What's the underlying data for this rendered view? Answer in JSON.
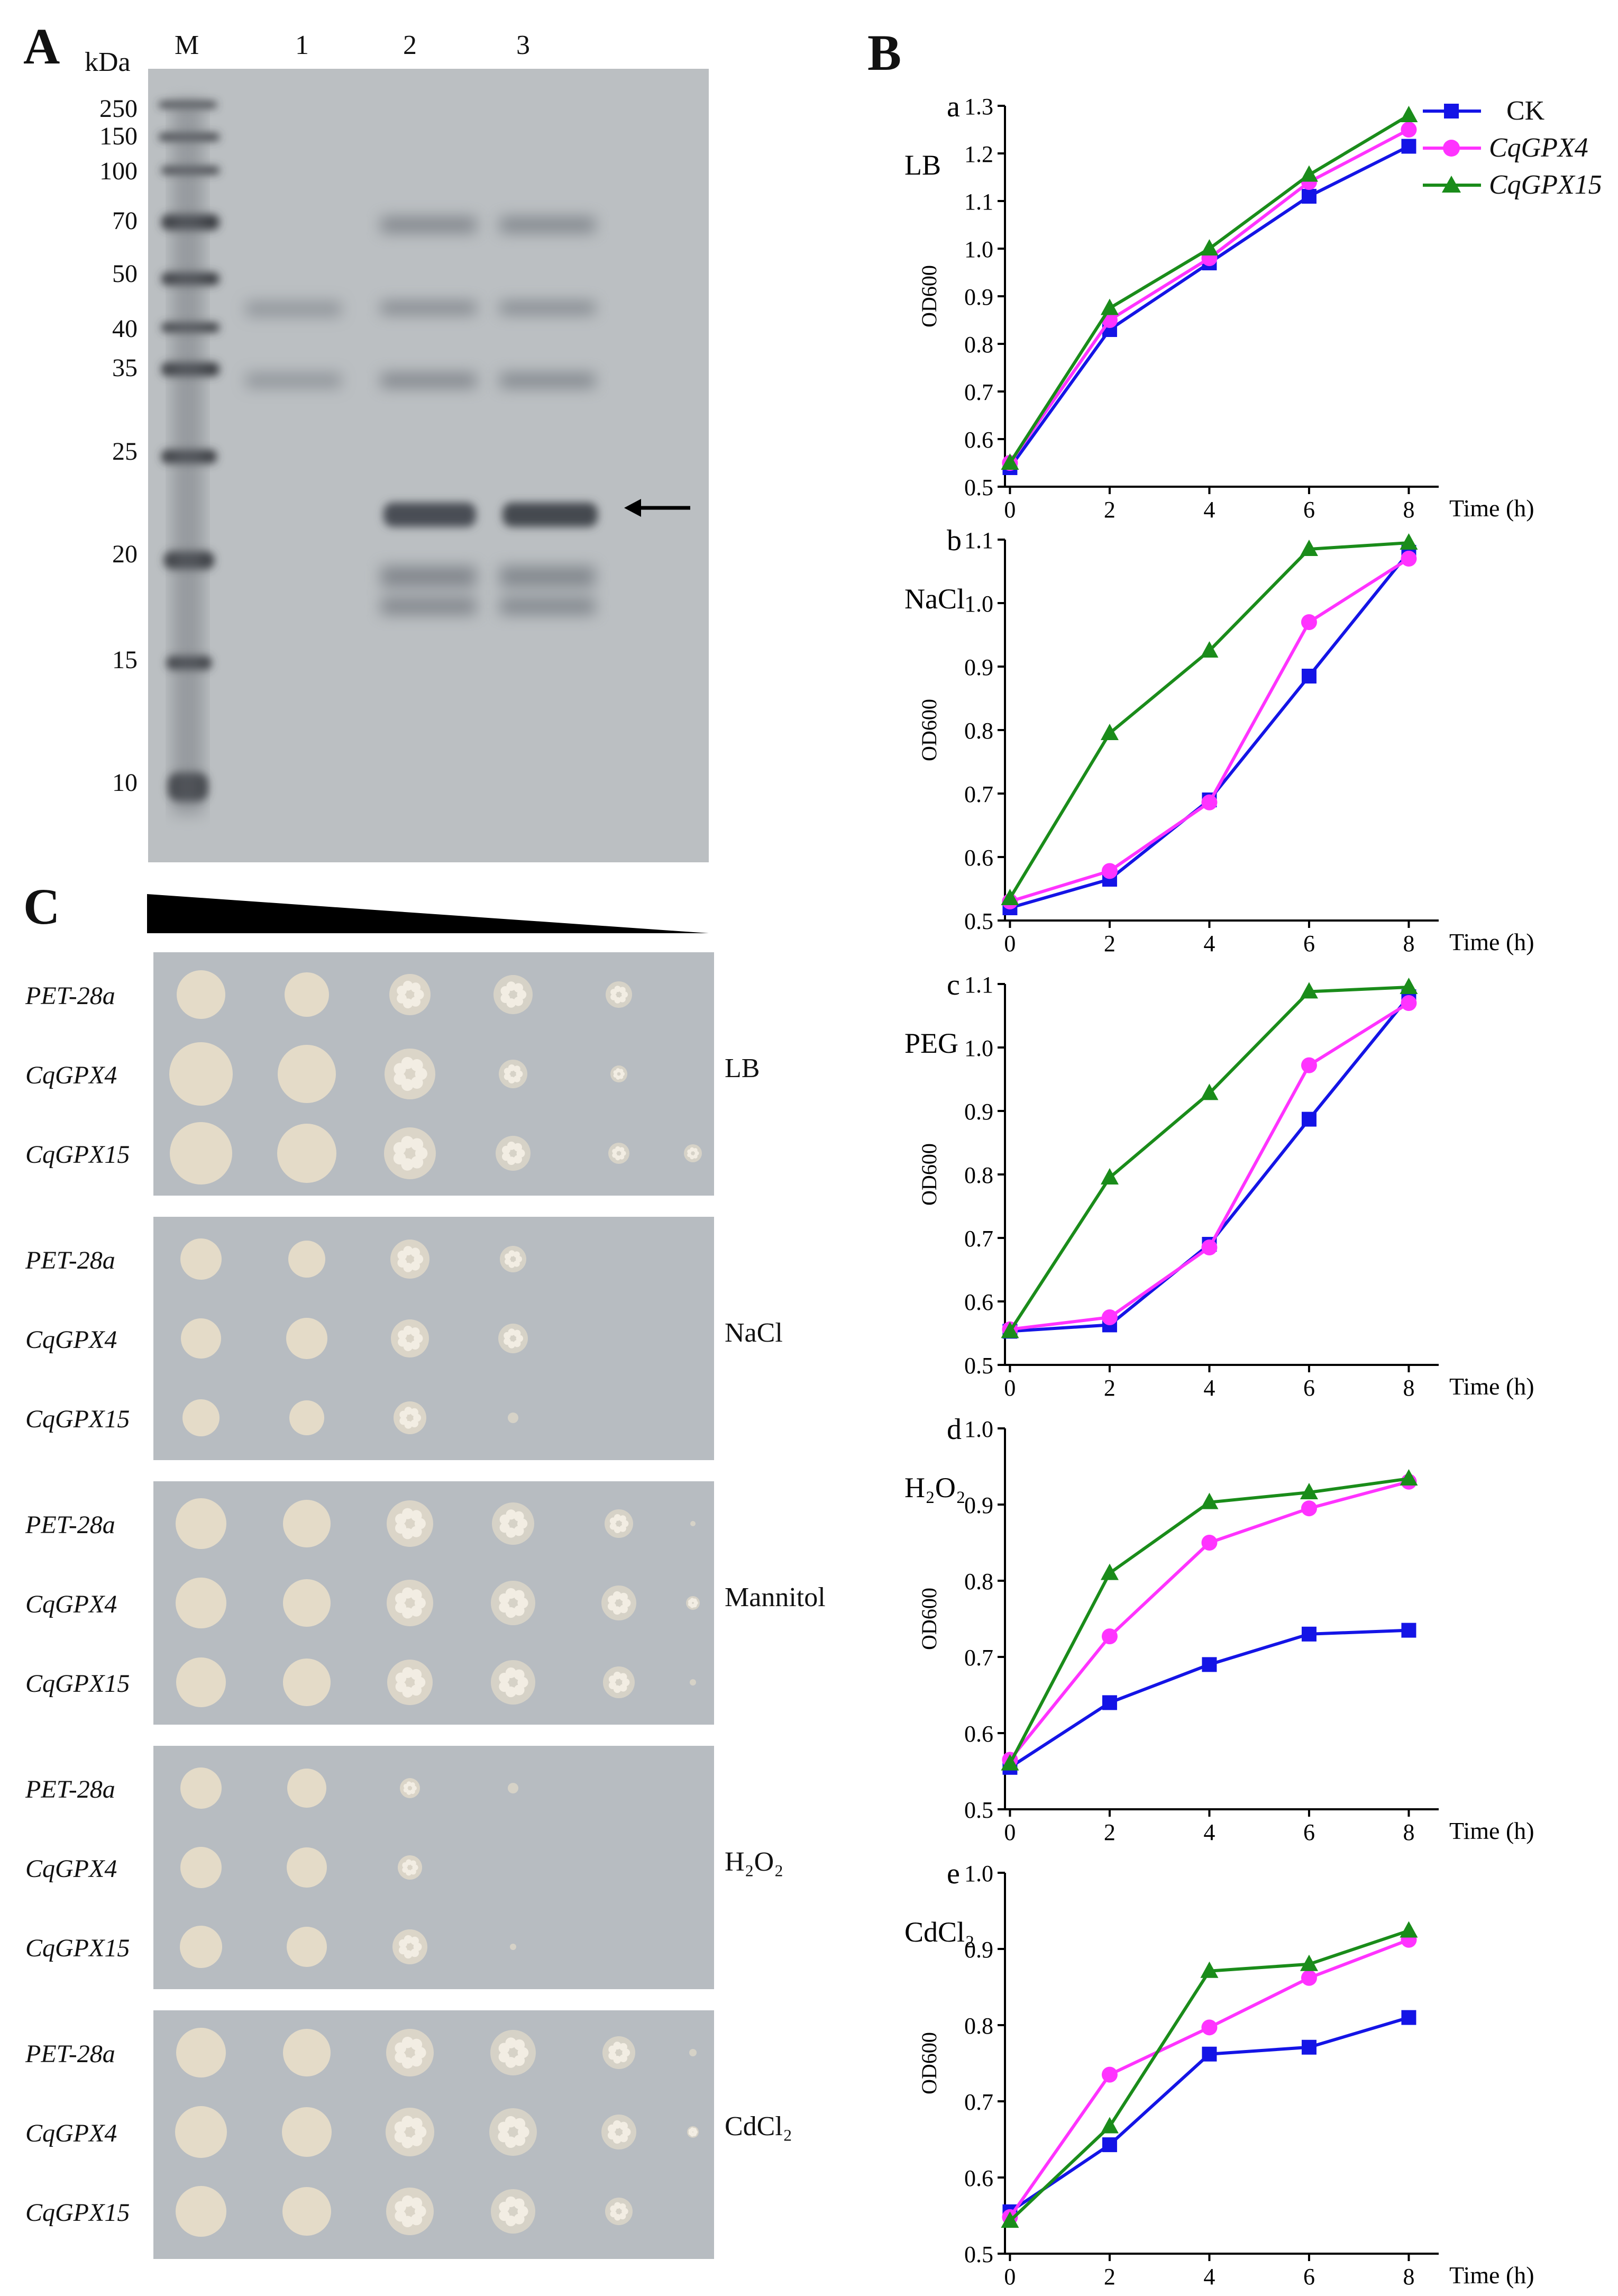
{
  "panels": {
    "A": {
      "letter": "A",
      "unit_label": "kDa",
      "lanes": [
        "M",
        "1",
        "2",
        "3"
      ],
      "markers": [
        "250",
        "150",
        "100",
        "70",
        "50",
        "40",
        "35",
        "25",
        "20",
        "15",
        "10"
      ]
    },
    "B": {
      "letter": "B",
      "legend": [
        {
          "label": "CK",
          "color": "#1414e6",
          "marker": "square"
        },
        {
          "label": "CqGPX4",
          "color": "#ff33ff",
          "marker": "circle"
        },
        {
          "label": "CqGPX15",
          "color": "#1a8c1a",
          "marker": "triangle"
        }
      ]
    },
    "C": {
      "letter": "C",
      "strains": [
        "PET-28a",
        "CqGPX4",
        "CqGPX15"
      ],
      "conditions": [
        "LB",
        "NaCl",
        "Mannitol",
        "H₂O₂",
        "CdCl₂"
      ]
    }
  },
  "chart_data": [
    {
      "type": "line",
      "letter": "a",
      "condition": "LB",
      "xlabel": "Time (h)",
      "ylabel": "OD600",
      "x": [
        0,
        2,
        4,
        6,
        8
      ],
      "xticks": [
        "0",
        "2",
        "4",
        "6",
        "8"
      ],
      "ylim": [
        0.5,
        1.3
      ],
      "yticks": [
        "0.5",
        "0.6",
        "0.7",
        "0.8",
        "0.9",
        "1.0",
        "1.1",
        "1.2",
        "1.3"
      ],
      "series": [
        {
          "name": "CK",
          "values": [
            0.54,
            0.83,
            0.97,
            1.11,
            1.215
          ]
        },
        {
          "name": "CqGPX4",
          "values": [
            0.55,
            0.85,
            0.98,
            1.14,
            1.25
          ]
        },
        {
          "name": "CqGPX15",
          "values": [
            0.55,
            0.875,
            1.0,
            1.155,
            1.28
          ]
        }
      ]
    },
    {
      "type": "line",
      "letter": "b",
      "condition": "NaCl",
      "xlabel": "Time (h)",
      "ylabel": "OD600",
      "x": [
        0,
        2,
        4,
        6,
        8
      ],
      "xticks": [
        "0",
        "2",
        "4",
        "6",
        "8"
      ],
      "ylim": [
        0.5,
        1.1
      ],
      "yticks": [
        "0.5",
        "0.6",
        "0.7",
        "0.8",
        "0.9",
        "1.0",
        "1.1"
      ],
      "series": [
        {
          "name": "CK",
          "values": [
            0.52,
            0.565,
            0.69,
            0.885,
            1.08
          ]
        },
        {
          "name": "CqGPX4",
          "values": [
            0.53,
            0.578,
            0.686,
            0.97,
            1.07
          ]
        },
        {
          "name": "CqGPX15",
          "values": [
            0.535,
            0.795,
            0.925,
            1.085,
            1.095
          ]
        }
      ]
    },
    {
      "type": "line",
      "letter": "c",
      "condition": "PEG",
      "xlabel": "Time (h)",
      "ylabel": "OD600",
      "x": [
        0,
        2,
        4,
        6,
        8
      ],
      "xticks": [
        "0",
        "2",
        "4",
        "6",
        "8"
      ],
      "ylim": [
        0.5,
        1.1
      ],
      "yticks": [
        "0.5",
        "0.6",
        "0.7",
        "0.8",
        "0.9",
        "1.0",
        "1.1"
      ],
      "series": [
        {
          "name": "CK",
          "values": [
            0.553,
            0.563,
            0.69,
            0.887,
            1.08
          ]
        },
        {
          "name": "CqGPX4",
          "values": [
            0.556,
            0.575,
            0.685,
            0.972,
            1.07
          ]
        },
        {
          "name": "CqGPX15",
          "values": [
            0.553,
            0.795,
            0.928,
            1.088,
            1.095
          ]
        }
      ]
    },
    {
      "type": "line",
      "letter": "d",
      "condition": "H₂O₂",
      "xlabel": "Time (h)",
      "ylabel": "OD600",
      "x": [
        0,
        2,
        4,
        6,
        8
      ],
      "xticks": [
        "0",
        "2",
        "4",
        "6",
        "8"
      ],
      "ylim": [
        0.5,
        1.0
      ],
      "yticks": [
        "0.5",
        "0.6",
        "0.7",
        "0.8",
        "0.9",
        "1.0"
      ],
      "series": [
        {
          "name": "CK",
          "values": [
            0.555,
            0.64,
            0.69,
            0.73,
            0.735
          ]
        },
        {
          "name": "CqGPX4",
          "values": [
            0.565,
            0.727,
            0.85,
            0.895,
            0.93
          ]
        },
        {
          "name": "CqGPX15",
          "values": [
            0.56,
            0.81,
            0.903,
            0.916,
            0.934
          ]
        }
      ]
    },
    {
      "type": "line",
      "letter": "e",
      "condition": "CdCl₂",
      "xlabel": "Time (h)",
      "ylabel": "OD600",
      "x": [
        0,
        2,
        4,
        6,
        8
      ],
      "xticks": [
        "0",
        "2",
        "4",
        "6",
        "8"
      ],
      "ylim": [
        0.5,
        1.0
      ],
      "yticks": [
        "0.5",
        "0.6",
        "0.7",
        "0.8",
        "0.9",
        "1.0"
      ],
      "series": [
        {
          "name": "CK",
          "values": [
            0.555,
            0.643,
            0.762,
            0.771,
            0.81
          ]
        },
        {
          "name": "CqGPX4",
          "values": [
            0.548,
            0.735,
            0.797,
            0.862,
            0.912
          ]
        },
        {
          "name": "CqGPX15",
          "values": [
            0.543,
            0.667,
            0.871,
            0.88,
            0.924
          ]
        }
      ]
    }
  ]
}
